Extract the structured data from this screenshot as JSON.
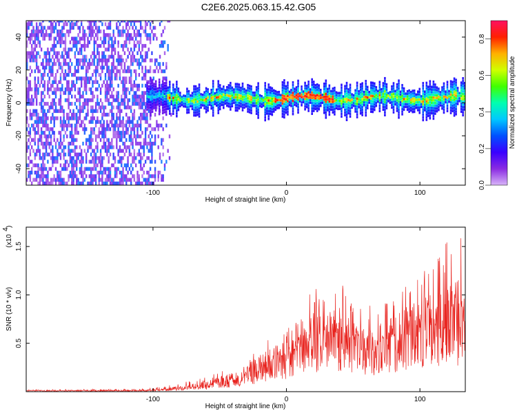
{
  "title": "C2E6.2025.063.15.42.G05",
  "chart_data": [
    {
      "type": "heatmap",
      "xlabel": "Height of straight line (km)",
      "ylabel": "Frequency (Hz)",
      "xlim": [
        -195,
        134
      ],
      "ylim": [
        -50,
        50
      ],
      "x_ticks": [
        -100,
        0,
        100
      ],
      "y_ticks": [
        -40,
        -20,
        0,
        20,
        40
      ],
      "colorbar": {
        "label": "Normalized spectral amplitude",
        "range": [
          0.0,
          0.9
        ],
        "ticks": [
          0.0,
          0.2,
          0.4,
          0.6,
          0.8
        ],
        "colors": [
          "#d8b4f8",
          "#8a2be2",
          "#3a00ff",
          "#0050ff",
          "#00c8ff",
          "#00ffb0",
          "#40ff00",
          "#d0ff00",
          "#ffb000",
          "#ff2000",
          "#ff1060"
        ]
      },
      "regions": [
        {
          "name": "noise",
          "x_range": [
            -195,
            -85
          ],
          "freq_range": [
            -50,
            50
          ],
          "amplitude": 0.05
        },
        {
          "name": "signal-band",
          "x_range": [
            -105,
            134
          ],
          "freq_center": 2,
          "freq_halfwidth": [
            3,
            12
          ],
          "amplitude": [
            0.2,
            0.85
          ]
        }
      ],
      "grid": false
    },
    {
      "type": "line",
      "xlabel": "Height of straight line (km)",
      "ylabel": "SNR (10 * v/v)",
      "y_scale_label": "(x10",
      "y_scale_exponent": "4",
      "xlim": [
        -195,
        134
      ],
      "ylim": [
        0,
        1.7
      ],
      "x_ticks": [
        -100,
        0,
        100
      ],
      "y_ticks": [
        0.5,
        1.0,
        1.5
      ],
      "y_tick_labels": [
        "0.5",
        "1.0",
        "1.5"
      ],
      "series": [
        {
          "color": "#e8231e",
          "envelope_x": [
            -195,
            -110,
            -90,
            -60,
            -35,
            -20,
            -10,
            0,
            10,
            20,
            30,
            40,
            50,
            60,
            70,
            80,
            90,
            100,
            110,
            120,
            134
          ],
          "envelope_mean": [
            0.01,
            0.01,
            0.02,
            0.06,
            0.15,
            0.25,
            0.32,
            0.36,
            0.42,
            0.55,
            0.62,
            0.6,
            0.52,
            0.45,
            0.48,
            0.55,
            0.62,
            0.65,
            0.68,
            0.7,
            0.72
          ],
          "envelope_max": [
            0.02,
            0.03,
            0.06,
            0.15,
            0.3,
            0.5,
            0.62,
            0.68,
            0.75,
            1.1,
            1.0,
            1.15,
            0.9,
            0.88,
            0.95,
            1.0,
            1.15,
            1.25,
            1.35,
            1.55,
            1.65
          ]
        }
      ],
      "grid": false
    }
  ]
}
